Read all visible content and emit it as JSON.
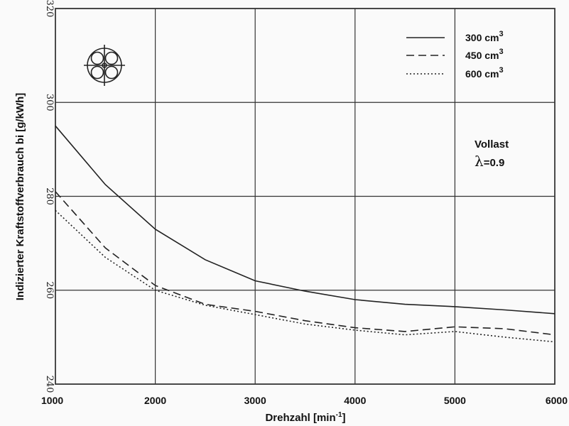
{
  "chart_data": {
    "type": "line",
    "title": "",
    "xlabel": "Drehzahl [min",
    "xlabel_sup": "-1",
    "xlabel_end": "]",
    "ylabel": "Indizierter Kraftstoffverbrauch bi [g/kWh]",
    "xlim": [
      1000,
      6000
    ],
    "ylim": [
      240,
      320
    ],
    "x_ticks": [
      "1000",
      "2000",
      "3000",
      "4000",
      "5000",
      "6000"
    ],
    "y_ticks": [
      "240",
      "260",
      "280",
      "300",
      "320"
    ],
    "grid": true,
    "legend_position": "top-right",
    "annotation": {
      "line1": "Vollast",
      "lambda": "λ",
      "line2": "=0.9"
    },
    "series": [
      {
        "name": "300 cm",
        "sup": "3",
        "style": "solid",
        "color": "#222222",
        "x": [
          1000,
          1500,
          2000,
          2500,
          3000,
          3500,
          4000,
          4500,
          5000,
          5500,
          6000
        ],
        "y": [
          295.0,
          282.5,
          273.0,
          266.5,
          262.0,
          259.8,
          258.0,
          257.0,
          256.5,
          255.8,
          255.0
        ]
      },
      {
        "name": "450 cm",
        "sup": "3",
        "style": "dashed",
        "color": "#222222",
        "x": [
          1000,
          1500,
          2000,
          2500,
          3000,
          3500,
          4000,
          4500,
          5000,
          5500,
          6000
        ],
        "y": [
          281.0,
          269.0,
          261.0,
          257.0,
          255.5,
          253.5,
          252.0,
          251.2,
          252.2,
          251.8,
          250.5
        ]
      },
      {
        "name": "600 cm",
        "sup": "3",
        "style": "dotted",
        "color": "#222222",
        "x": [
          1000,
          1500,
          2000,
          2500,
          3000,
          3500,
          4000,
          4500,
          5000,
          5500,
          6000
        ],
        "y": [
          277.0,
          267.0,
          260.0,
          256.8,
          254.8,
          252.8,
          251.5,
          250.5,
          251.2,
          250.0,
          249.0
        ]
      }
    ]
  }
}
